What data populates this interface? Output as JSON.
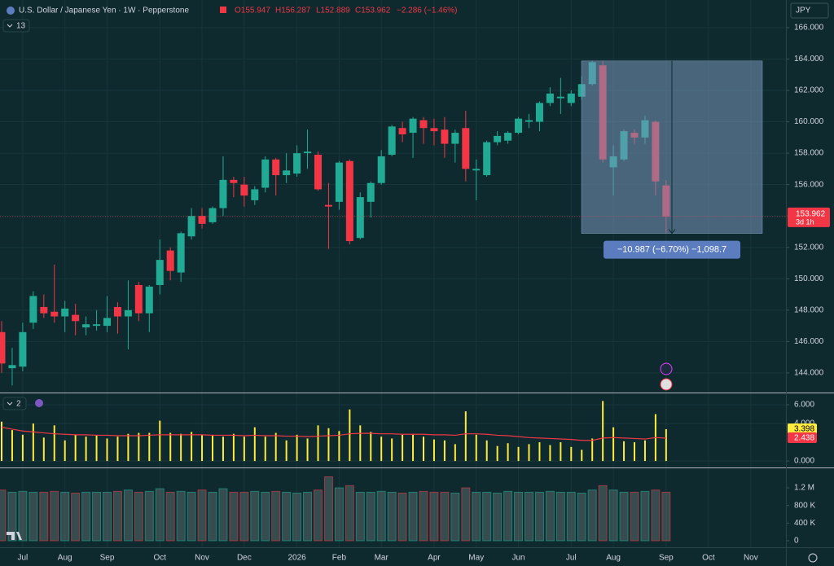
{
  "ui": {
    "symbol": "JPY",
    "header": {
      "title": "U.S. Dollar / Japanese Yen · 1W · Pepperstone",
      "ohlc": [
        "O155.947",
        "H156.287",
        "L152.889",
        "C153.962",
        "−2.286 (−1.46%)"
      ]
    },
    "pane_labels": [
      "13",
      "2"
    ]
  },
  "chart_data": [
    {
      "type": "candlestick",
      "categories": [
        null,
        null,
        "Jul",
        null,
        null,
        null,
        "Aug",
        null,
        null,
        null,
        "Sep",
        null,
        null,
        null,
        null,
        "Oct",
        null,
        null,
        null,
        "Nov",
        null,
        null,
        null,
        "Dec",
        null,
        null,
        null,
        null,
        "2026",
        null,
        null,
        null,
        "Feb",
        null,
        null,
        null,
        "Mar",
        null,
        null,
        null,
        null,
        "Apr",
        null,
        null,
        null,
        "May",
        null,
        null,
        null,
        "Jun",
        null,
        null,
        null,
        null,
        "Jul",
        null,
        null,
        null,
        "Aug",
        null,
        null,
        null,
        null,
        "Sep"
      ],
      "future_categories": [
        "Oct",
        "Nov"
      ],
      "open": [
        146.6,
        144.3,
        144.4,
        147.2,
        148.2,
        147.9,
        147.6,
        147.7,
        146.9,
        147.0,
        147.0,
        148.2,
        147.6,
        149.6,
        147.8,
        149.6,
        151.8,
        150.4,
        152.7,
        154.0,
        153.6,
        154.5,
        156.3,
        156.0,
        155.0,
        155.8,
        157.6,
        156.6,
        156.7,
        158.0,
        157.9,
        154.7,
        154.9,
        157.5,
        152.6,
        154.9,
        156.1,
        157.9,
        159.6,
        159.3,
        160.1,
        159.6,
        159.5,
        158.6,
        159.6,
        156.9,
        156.6,
        158.7,
        158.8,
        159.3,
        160.0,
        160.0,
        161.2,
        161.5,
        161.2,
        161.6,
        162.4,
        163.6,
        157.1,
        157.6,
        159.3,
        159.0,
        160.0,
        155.947
      ],
      "high": [
        147.3,
        145.6,
        147.2,
        149.2,
        149.0,
        150.9,
        148.6,
        148.4,
        147.6,
        148.0,
        148.9,
        148.5,
        149.9,
        149.8,
        149.6,
        152.5,
        152.0,
        153.0,
        154.5,
        154.5,
        154.6,
        157.8,
        156.5,
        156.5,
        155.9,
        157.8,
        157.7,
        158.0,
        158.5,
        159.5,
        158.1,
        156.1,
        157.5,
        157.6,
        155.5,
        156.2,
        158.2,
        159.8,
        160.0,
        160.3,
        160.3,
        160.2,
        160.3,
        159.5,
        160.7,
        157.6,
        158.8,
        159.4,
        159.4,
        160.3,
        160.5,
        161.3,
        162.2,
        162.8,
        162.0,
        162.9,
        163.9,
        163.9,
        158.5,
        159.5,
        159.5,
        160.4,
        160.1,
        156.287
      ],
      "low": [
        144.0,
        143.2,
        144.1,
        146.8,
        147.5,
        147.2,
        146.6,
        146.4,
        146.4,
        146.7,
        146.6,
        146.5,
        145.5,
        147.3,
        146.6,
        149.0,
        149.9,
        149.8,
        152.5,
        153.2,
        153.5,
        154.0,
        155.2,
        154.6,
        154.7,
        155.5,
        155.3,
        156.1,
        156.5,
        157.0,
        155.6,
        151.9,
        154.4,
        152.2,
        152.5,
        153.9,
        156.0,
        157.8,
        158.7,
        157.7,
        158.6,
        158.5,
        157.7,
        157.4,
        156.2,
        155.0,
        156.5,
        158.5,
        158.6,
        159.2,
        159.6,
        159.4,
        161.0,
        160.5,
        161.0,
        161.4,
        162.3,
        157.4,
        155.3,
        157.5,
        158.6,
        158.6,
        155.3,
        152.889
      ],
      "close": [
        144.6,
        144.5,
        146.6,
        148.9,
        147.8,
        147.6,
        148.1,
        147.3,
        147.1,
        147.1,
        147.5,
        147.6,
        148.0,
        147.8,
        149.5,
        151.2,
        150.5,
        152.9,
        154.0,
        153.5,
        154.5,
        156.3,
        156.1,
        155.3,
        155.7,
        157.6,
        156.6,
        156.9,
        158.0,
        158.1,
        155.7,
        154.6,
        157.4,
        152.4,
        155.2,
        156.1,
        157.8,
        159.7,
        159.2,
        160.2,
        159.6,
        159.4,
        158.6,
        159.3,
        157.0,
        157.0,
        158.7,
        159.1,
        159.3,
        160.2,
        160.1,
        161.2,
        161.8,
        161.6,
        161.8,
        162.4,
        163.8,
        157.6,
        157.8,
        159.4,
        159.0,
        160.1,
        156.2,
        153.962
      ],
      "up_color": "#22ab94",
      "down_color": "#f23645",
      "ylim": [
        142.75,
        167.76
      ],
      "yticks": [
        {
          "value": 144,
          "label": "144.000"
        },
        {
          "value": 146,
          "label": "146.000"
        },
        {
          "value": 148,
          "label": "148.000"
        },
        {
          "value": 150,
          "label": "150.000"
        },
        {
          "value": 152,
          "label": "152.000"
        },
        {
          "value": 154,
          "label": "154.000"
        },
        {
          "value": 156,
          "label": "156.000"
        },
        {
          "value": 158,
          "label": "158.000"
        },
        {
          "value": 160,
          "label": "160.000"
        },
        {
          "value": 162,
          "label": "162.000"
        },
        {
          "value": 164,
          "label": "164.000"
        },
        {
          "value": 166,
          "label": "166.000"
        }
      ],
      "grid": true,
      "last_tag": "3d 1h",
      "measure": {
        "from": 163.876,
        "to": 152.889,
        "label": "−10.987 (−6.70%) −1,098.7"
      }
    },
    {
      "type": "bar_line",
      "bars": {
        "color": "#ffeb3b",
        "values": [
          4.2,
          3.3,
          2.8,
          4.0,
          2.5,
          3.8,
          2.2,
          2.8,
          2.6,
          2.7,
          2.4,
          2.6,
          2.9,
          3.0,
          3.0,
          4.3,
          3.0,
          2.9,
          3.1,
          2.8,
          2.7,
          2.6,
          2.9,
          2.6,
          3.6,
          2.6,
          3.0,
          2.2,
          2.8,
          2.4,
          3.8,
          3.5,
          3.2,
          5.5,
          3.8,
          3.1,
          2.6,
          2.4,
          2.8,
          2.8,
          2.6,
          2.3,
          2.2,
          1.8,
          5.3,
          2.8,
          2.2,
          1.6,
          1.9,
          1.5,
          1.8,
          2.0,
          1.7,
          2.0,
          1.5,
          1.2,
          2.4,
          6.4,
          3.6,
          2.1,
          2.0,
          2.2,
          5.0,
          3.398
        ]
      },
      "line": {
        "color": "#f23645",
        "values": [
          3.6,
          3.4,
          3.2,
          3.1,
          3.0,
          2.9,
          2.85,
          2.8,
          2.8,
          2.75,
          2.75,
          2.7,
          2.7,
          2.7,
          2.75,
          2.8,
          2.8,
          2.8,
          2.8,
          2.8,
          2.75,
          2.75,
          2.75,
          2.7,
          2.75,
          2.7,
          2.7,
          2.65,
          2.65,
          2.6,
          2.65,
          2.7,
          2.75,
          2.9,
          2.95,
          2.95,
          2.9,
          2.9,
          2.85,
          2.85,
          2.85,
          2.8,
          2.8,
          2.75,
          2.9,
          2.9,
          2.85,
          2.75,
          2.7,
          2.6,
          2.5,
          2.45,
          2.4,
          2.35,
          2.3,
          2.2,
          2.2,
          2.45,
          2.5,
          2.45,
          2.4,
          2.35,
          2.5,
          2.438
        ]
      },
      "ylim": [
        -0.6,
        7.13
      ],
      "yticks": [
        {
          "value": 0,
          "label": "0.000"
        },
        {
          "value": 4,
          "label": "4.000"
        },
        {
          "value": 6,
          "label": "6.000"
        }
      ]
    },
    {
      "type": "volume",
      "values": [
        1150000,
        1100000,
        1120000,
        1100000,
        1100000,
        1120000,
        1100000,
        1080000,
        1100000,
        1100000,
        1100000,
        1120000,
        1150000,
        1100000,
        1120000,
        1180000,
        1100000,
        1120000,
        1100000,
        1150000,
        1100000,
        1180000,
        1100000,
        1100000,
        1120000,
        1100000,
        1120000,
        1100000,
        1080000,
        1100000,
        1150000,
        1450000,
        1200000,
        1250000,
        1100000,
        1100000,
        1120000,
        1100000,
        1080000,
        1100000,
        1120000,
        1100000,
        1100000,
        1080000,
        1200000,
        1100000,
        1100000,
        1080000,
        1120000,
        1100000,
        1100000,
        1100000,
        1120000,
        1100000,
        1100000,
        1080000,
        1150000,
        1250000,
        1150000,
        1100000,
        1100000,
        1120000,
        1150000,
        1100000
      ],
      "ylim": [
        -148000,
        1625000
      ],
      "yticks": [
        0,
        {
          "value": 400000,
          "label": "400 K"
        },
        {
          "value": 800000,
          "label": "800 K"
        },
        {
          "value": 1200000,
          "label": "1.2 M"
        }
      ]
    }
  ]
}
